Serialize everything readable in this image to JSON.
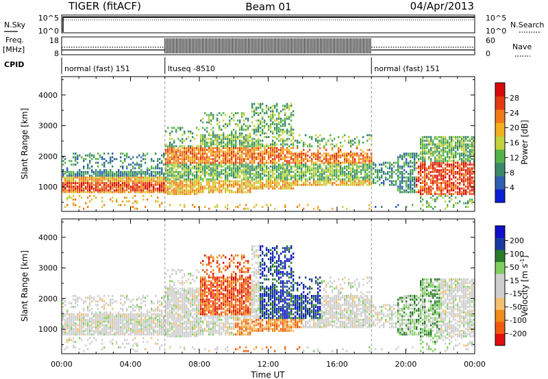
{
  "header": {
    "radar": "TIGER (fitACF)",
    "beam": "Beam 01",
    "date": "04/Apr/2013"
  },
  "status_panel": {
    "nsky_label": "N.Sky",
    "nsky_ticks": [
      "10^5",
      "10^0"
    ],
    "nsearch_label": "N.Search",
    "nsearch_ticks": [
      "10^5",
      "10^0"
    ],
    "freq_label": "Freq.",
    "freq_unit": "[MHz]",
    "freq_ticks": [
      "18",
      "8"
    ],
    "nave_label": "Nave",
    "nave_ticks": [
      "60",
      "0"
    ],
    "cpid_label": "CPID",
    "cpid_segments": [
      {
        "label": "normal (fast) 151",
        "start": "00:00",
        "end": "06:00"
      },
      {
        "label": "ltuseq -8510",
        "start": "06:00",
        "end": "18:00"
      },
      {
        "label": "normal (fast) 151",
        "start": "18:00",
        "end": "24:00"
      }
    ]
  },
  "colors": {
    "power_scale": [
      "#0a1fd6",
      "#2f5fb0",
      "#3a8a6a",
      "#53b34a",
      "#c3d23c",
      "#f0b020",
      "#f07a18",
      "#e23a12",
      "#d60a0a"
    ],
    "velocity_scale": [
      "#e11010",
      "#f05a10",
      "#f08c1a",
      "#f3c070",
      "#cfcfcf",
      "#cfcfcf",
      "#7fd060",
      "#2a7a2a",
      "#1a3aa0",
      "#1010c8"
    ]
  },
  "chart_data": [
    {
      "type": "heatmap",
      "panel": "power",
      "ylabel": "Slant Range [km]",
      "yticks": [
        "1000",
        "2000",
        "3000",
        "4000"
      ],
      "ylim": [
        200,
        4600
      ],
      "x_ticks": [
        "00:00",
        "04:00",
        "08:00",
        "12:00",
        "16:00",
        "20:00",
        "00:00"
      ],
      "xlim_hours": [
        0,
        24
      ],
      "colorbar": {
        "label": "Power [dB]",
        "ticks": [
          "4",
          "8",
          "12",
          "16",
          "20",
          "24",
          "28"
        ],
        "range": [
          0,
          32
        ]
      }
    },
    {
      "type": "heatmap",
      "panel": "velocity",
      "ylabel": "Slant Range [km]",
      "yticks": [
        "1000",
        "2000",
        "3000",
        "4000"
      ],
      "ylim": [
        200,
        4600
      ],
      "x_ticks": [
        "00:00",
        "04:00",
        "08:00",
        "12:00",
        "16:00",
        "20:00",
        "00:00"
      ],
      "xlim_hours": [
        0,
        24
      ],
      "xlabel": "Time UT",
      "colorbar": {
        "label_main": "Velocity [m s",
        "label_sup": "-1",
        "label_end": "]",
        "ticks": [
          "200",
          "100",
          "50",
          "15",
          "-15",
          "-50",
          "-100",
          "-200"
        ]
      }
    }
  ]
}
